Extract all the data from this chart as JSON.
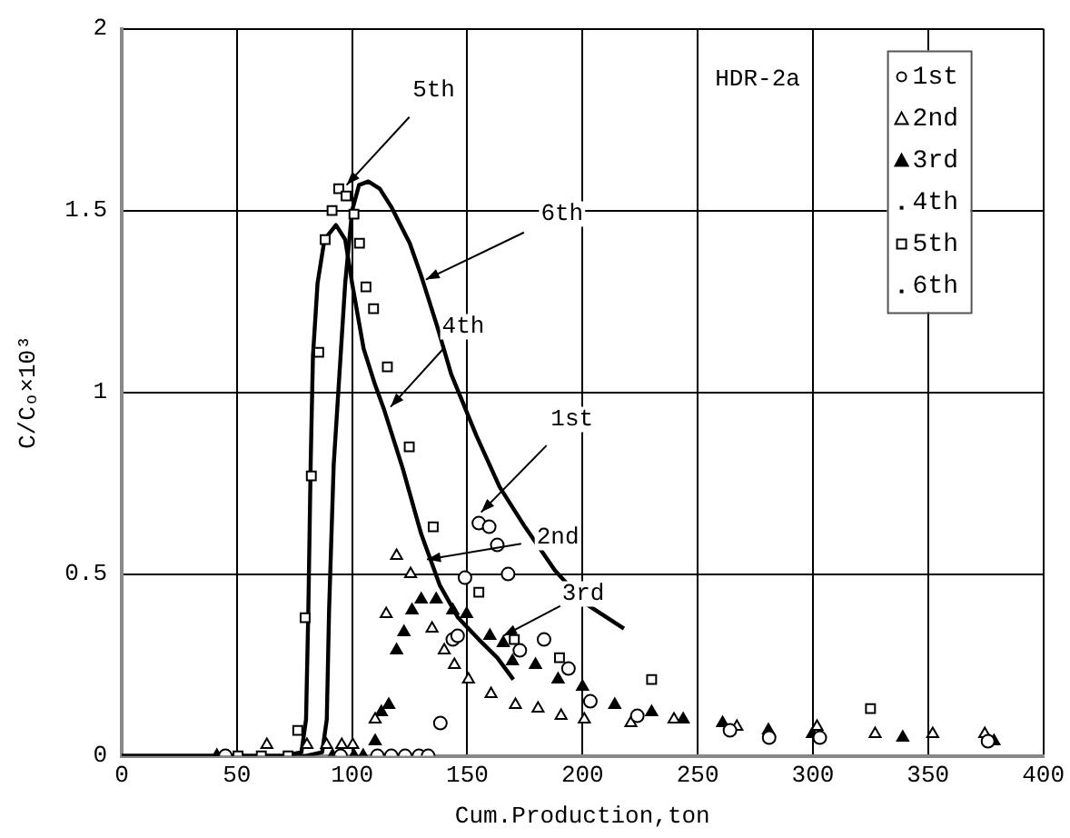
{
  "chart_data": {
    "type": "scatter",
    "xlabel": "Cum.Production,ton",
    "ylabel": "C/Cₒ×10³",
    "xlim": [
      0,
      400
    ],
    "xticks": [
      0,
      50,
      100,
      150,
      200,
      250,
      300,
      350,
      400
    ],
    "ylim": [
      0,
      2
    ],
    "yticks": [
      0,
      0.5,
      1,
      1.5,
      2
    ],
    "grid": true,
    "legend": "top right",
    "annotations": [
      "HDR-2a",
      {
        "text": "5th",
        "x": 97.6,
        "y": 1.57
      },
      {
        "text": "6th",
        "x": 132,
        "y": 1.31
      },
      {
        "text": "4th",
        "x": 116.7,
        "y": 0.96
      },
      {
        "text": "1st",
        "x": 156,
        "y": 0.67
      },
      {
        "text": "2nd",
        "x": 132.5,
        "y": 0.54
      },
      {
        "text": "3rd",
        "x": 165.6,
        "y": 0.33
      }
    ],
    "series": [
      {
        "name": "1st",
        "marker": "circle",
        "color": "#000000",
        "x": [
          45,
          95,
          111,
          117,
          123,
          129,
          133,
          138.3,
          143.7,
          145.8,
          149,
          155,
          159.5,
          163,
          167.7,
          172.8,
          183.3,
          193.9,
          203.4,
          223.8,
          264,
          281,
          303,
          376
        ],
        "values": [
          0,
          0,
          0,
          0,
          0,
          0,
          0,
          0.09,
          0.32,
          0.33,
          0.49,
          0.64,
          0.63,
          0.58,
          0.5,
          0.29,
          0.32,
          0.24,
          0.15,
          0.11,
          0.07,
          0.05,
          0.05,
          0.04
        ]
      },
      {
        "name": "2nd",
        "marker": "triangle",
        "color": "#000000",
        "x": [
          63,
          80.4,
          88.9,
          95.5,
          100.3,
          110,
          114.8,
          119.3,
          125.4,
          134.7,
          140,
          144.4,
          150.5,
          160.3,
          170.9,
          180.7,
          190.7,
          200.8,
          221,
          239.7,
          267,
          301.8,
          327,
          352,
          374.6
        ],
        "values": [
          0.03,
          0.03,
          0.03,
          0.03,
          0.03,
          0.1,
          0.39,
          0.55,
          0.5,
          0.35,
          0.29,
          0.25,
          0.21,
          0.17,
          0.14,
          0.13,
          0.11,
          0.1,
          0.09,
          0.1,
          0.08,
          0.08,
          0.06,
          0.06,
          0.06
        ]
      },
      {
        "name": "3rd",
        "marker": "triangle",
        "color": "#000000",
        "x": [
          41.3,
          91.5,
          100.8,
          104.8,
          110,
          112.7,
          115.9,
          119.3,
          122.5,
          126,
          130,
          136.5,
          143.7,
          149.7,
          159.8,
          165.6,
          169.6,
          179.6,
          189.4,
          200,
          214,
          230,
          243.7,
          260.8,
          280.7,
          299.8,
          339,
          378.6
        ],
        "values": [
          0,
          0,
          0,
          0,
          0.04,
          0.12,
          0.14,
          0.29,
          0.34,
          0.4,
          0.43,
          0.43,
          0.4,
          0.39,
          0.33,
          0.31,
          0.26,
          0.25,
          0.21,
          0.19,
          0.14,
          0.12,
          0.1,
          0.09,
          0.07,
          0.06,
          0.05,
          0.04
        ]
      },
      {
        "name": "4th",
        "type": "line",
        "marker": "none",
        "line_style": "solid",
        "color": "#000000",
        "x": [
          0,
          70,
          78,
          80,
          81,
          82,
          83,
          85,
          88,
          93,
          97,
          100,
          105,
          110,
          114,
          122,
          130,
          138,
          146,
          155,
          163,
          170
        ],
        "values": [
          0,
          0,
          0.01,
          0.1,
          0.4,
          0.8,
          1.1,
          1.3,
          1.42,
          1.46,
          1.42,
          1.3,
          1.12,
          1.02,
          0.95,
          0.79,
          0.61,
          0.47,
          0.38,
          0.32,
          0.27,
          0.21
        ]
      },
      {
        "name": "5th",
        "marker": "square",
        "color": "#000000",
        "x": [
          50.5,
          60.6,
          72.2,
          76.4,
          79.6,
          82.3,
          85.5,
          88.3,
          91.3,
          94.2,
          97.4,
          100.8,
          103.2,
          106,
          109.3,
          115.3,
          124.8,
          135.2,
          155,
          170.4,
          190,
          230,
          325
        ],
        "values": [
          0,
          0,
          0,
          0.07,
          0.38,
          0.77,
          1.11,
          1.42,
          1.5,
          1.56,
          1.54,
          1.49,
          1.41,
          1.29,
          1.23,
          1.07,
          0.85,
          0.63,
          0.45,
          0.32,
          0.27,
          0.21,
          0.13
        ]
      },
      {
        "name": "6th",
        "type": "line",
        "marker": "none",
        "line_style": "solid",
        "color": "#000000",
        "x": [
          0,
          80,
          87,
          89,
          90,
          92,
          95,
          97,
          100,
          103,
          107,
          112,
          117,
          125,
          130,
          137,
          143,
          154,
          164,
          175,
          188,
          201,
          218
        ],
        "values": [
          0,
          0,
          0.01,
          0.1,
          0.4,
          0.8,
          1.1,
          1.3,
          1.5,
          1.57,
          1.58,
          1.56,
          1.51,
          1.41,
          1.32,
          1.18,
          1.05,
          0.88,
          0.74,
          0.63,
          0.51,
          0.42,
          0.35
        ]
      }
    ]
  }
}
